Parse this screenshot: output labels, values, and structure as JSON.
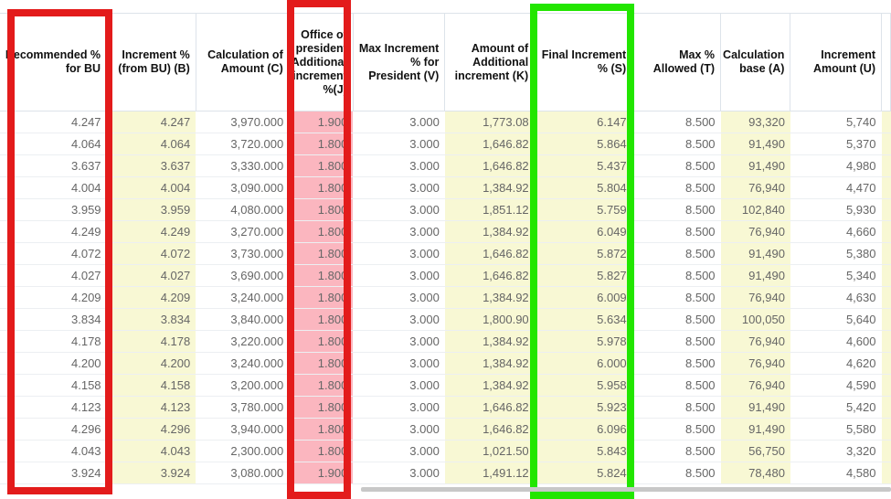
{
  "columns": [
    {
      "label": "Recommended % for BU",
      "fill": "none"
    },
    {
      "label": "Increment % (from BU) (B)",
      "fill": "yellow"
    },
    {
      "label": "Calculation of Amount (C)",
      "fill": "none"
    },
    {
      "label": "Office of president Additional increment %(J)",
      "fill": "pink"
    },
    {
      "label": "Max Increment % for President (V)",
      "fill": "none"
    },
    {
      "label": "Amount of Additional increment (K)",
      "fill": "yellow"
    },
    {
      "label": "Final Increment % (S)",
      "fill": "yellow"
    },
    {
      "label": "Max % Allowed (T)",
      "fill": "none"
    },
    {
      "label": "Calculation base (A)",
      "fill": "yellow"
    },
    {
      "label": "Increment Amount (U)",
      "fill": "none"
    }
  ],
  "rows": [
    [
      "4.247",
      "4.247",
      "3,970.000",
      "1.900",
      "3.000",
      "1,773.08",
      "6.147",
      "8.500",
      "93,320",
      "5,740"
    ],
    [
      "4.064",
      "4.064",
      "3,720.000",
      "1.800",
      "3.000",
      "1,646.82",
      "5.864",
      "8.500",
      "91,490",
      "5,370"
    ],
    [
      "3.637",
      "3.637",
      "3,330.000",
      "1.800",
      "3.000",
      "1,646.82",
      "5.437",
      "8.500",
      "91,490",
      "4,980"
    ],
    [
      "4.004",
      "4.004",
      "3,090.000",
      "1.800",
      "3.000",
      "1,384.92",
      "5.804",
      "8.500",
      "76,940",
      "4,470"
    ],
    [
      "3.959",
      "3.959",
      "4,080.000",
      "1.800",
      "3.000",
      "1,851.12",
      "5.759",
      "8.500",
      "102,840",
      "5,930"
    ],
    [
      "4.249",
      "4.249",
      "3,270.000",
      "1.800",
      "3.000",
      "1,384.92",
      "6.049",
      "8.500",
      "76,940",
      "4,660"
    ],
    [
      "4.072",
      "4.072",
      "3,730.000",
      "1.800",
      "3.000",
      "1,646.82",
      "5.872",
      "8.500",
      "91,490",
      "5,380"
    ],
    [
      "4.027",
      "4.027",
      "3,690.000",
      "1.800",
      "3.000",
      "1,646.82",
      "5.827",
      "8.500",
      "91,490",
      "5,340"
    ],
    [
      "4.209",
      "4.209",
      "3,240.000",
      "1.800",
      "3.000",
      "1,384.92",
      "6.009",
      "8.500",
      "76,940",
      "4,630"
    ],
    [
      "3.834",
      "3.834",
      "3,840.000",
      "1.800",
      "3.000",
      "1,800.90",
      "5.634",
      "8.500",
      "100,050",
      "5,640"
    ],
    [
      "4.178",
      "4.178",
      "3,220.000",
      "1.800",
      "3.000",
      "1,384.92",
      "5.978",
      "8.500",
      "76,940",
      "4,600"
    ],
    [
      "4.200",
      "4.200",
      "3,240.000",
      "1.800",
      "3.000",
      "1,384.92",
      "6.000",
      "8.500",
      "76,940",
      "4,620"
    ],
    [
      "4.158",
      "4.158",
      "3,200.000",
      "1.800",
      "3.000",
      "1,384.92",
      "5.958",
      "8.500",
      "76,940",
      "4,590"
    ],
    [
      "4.123",
      "4.123",
      "3,780.000",
      "1.800",
      "3.000",
      "1,646.82",
      "5.923",
      "8.500",
      "91,490",
      "5,420"
    ],
    [
      "4.296",
      "4.296",
      "3,940.000",
      "1.800",
      "3.000",
      "1,646.82",
      "6.096",
      "8.500",
      "91,490",
      "5,580"
    ],
    [
      "4.043",
      "4.043",
      "2,300.000",
      "1.800",
      "3.000",
      "1,021.50",
      "5.843",
      "8.500",
      "56,750",
      "3,320"
    ],
    [
      "3.924",
      "3.924",
      "3,080.000",
      "1.900",
      "3.000",
      "1,491.12",
      "5.824",
      "8.500",
      "78,480",
      "4,580"
    ]
  ],
  "highlights": {
    "red": "#e31b1b",
    "green": "#22e600",
    "yellow_cell": "#f8f8d4",
    "pink_cell": "#fbb6bf"
  }
}
